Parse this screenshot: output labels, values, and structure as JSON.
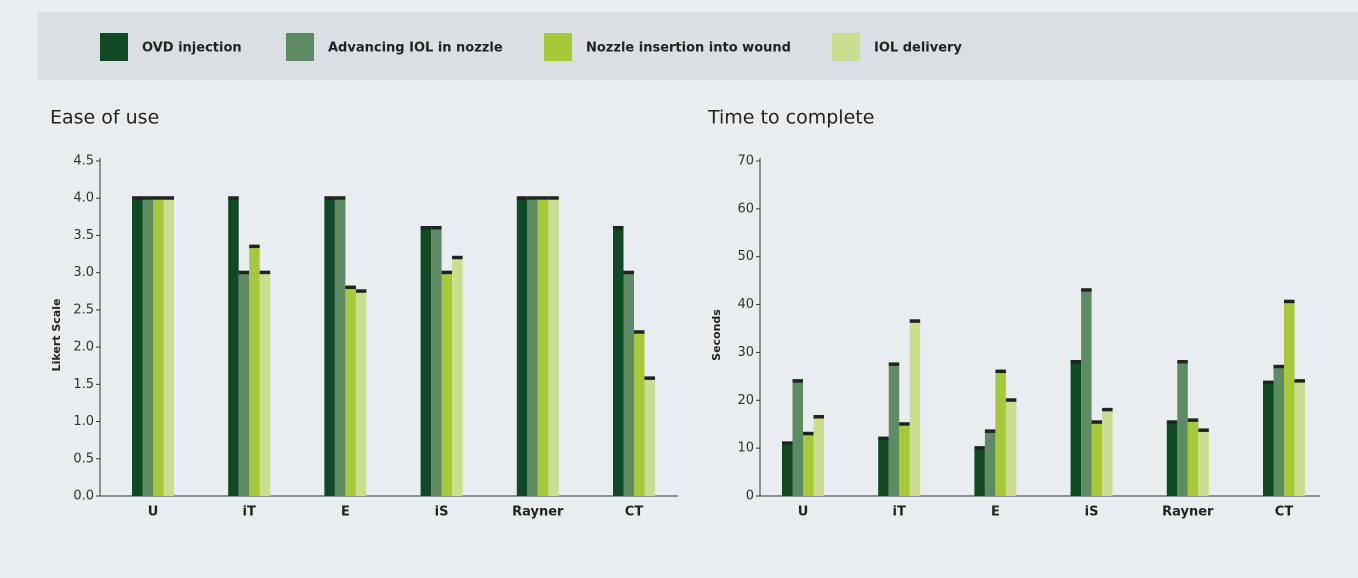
{
  "legend": [
    {
      "name": "OVD injection",
      "color": "#0f4a22"
    },
    {
      "name": "Advancing IOL in nozzle",
      "color": "#5e8a64"
    },
    {
      "name": "Nozzle insertion into wound",
      "color": "#a6c93a"
    },
    {
      "name": "IOL delivery",
      "color": "#c9df8f"
    }
  ],
  "chart_data": [
    {
      "type": "bar",
      "title": "Ease of use",
      "y_label": "Likert Scale",
      "categories": [
        "U",
        "iT",
        "E",
        "iS",
        "Rayner",
        "CT"
      ],
      "series": [
        {
          "values": [
            4.0,
            4.0,
            4.0,
            3.6,
            4.0,
            3.6
          ]
        },
        {
          "values": [
            4.0,
            3.0,
            4.0,
            3.6,
            4.0,
            3.0
          ]
        },
        {
          "values": [
            4.0,
            3.35,
            2.8,
            3.0,
            4.0,
            2.2
          ]
        },
        {
          "values": [
            4.0,
            3.0,
            2.75,
            3.2,
            4.0,
            1.58
          ]
        }
      ],
      "ylim": [
        0,
        4.5
      ],
      "yticks": [
        {
          "value": 0,
          "label": "0.0"
        },
        {
          "value": 0.5,
          "label": "0.5"
        },
        {
          "value": 1,
          "label": "1.0"
        },
        {
          "value": 1.5,
          "label": "1.5"
        },
        {
          "value": 2,
          "label": "2.0"
        },
        {
          "value": 2.5,
          "label": "2.5"
        },
        {
          "value": 3,
          "label": "3.0"
        },
        {
          "value": 3.5,
          "label": "3.5"
        },
        {
          "value": 4,
          "label": "4.0"
        },
        {
          "value": 4.5,
          "label": "4.5"
        }
      ]
    },
    {
      "type": "bar",
      "title": "Time to complete",
      "y_label": "Seconds",
      "categories": [
        "U",
        "iT",
        "E",
        "iS",
        "Rayner",
        "CT"
      ],
      "series": [
        {
          "values": [
            11,
            12,
            10,
            28,
            15.4,
            23.7
          ]
        },
        {
          "values": [
            24,
            27.5,
            13.5,
            43,
            28,
            27
          ]
        },
        {
          "values": [
            13,
            15,
            26,
            15.4,
            15.8,
            40.6
          ]
        },
        {
          "values": [
            16.5,
            36.5,
            20,
            18,
            13.7,
            24
          ]
        }
      ],
      "ylim": [
        0,
        70
      ],
      "yticks": [
        0,
        10,
        20,
        30,
        40,
        50,
        60,
        70
      ]
    }
  ]
}
